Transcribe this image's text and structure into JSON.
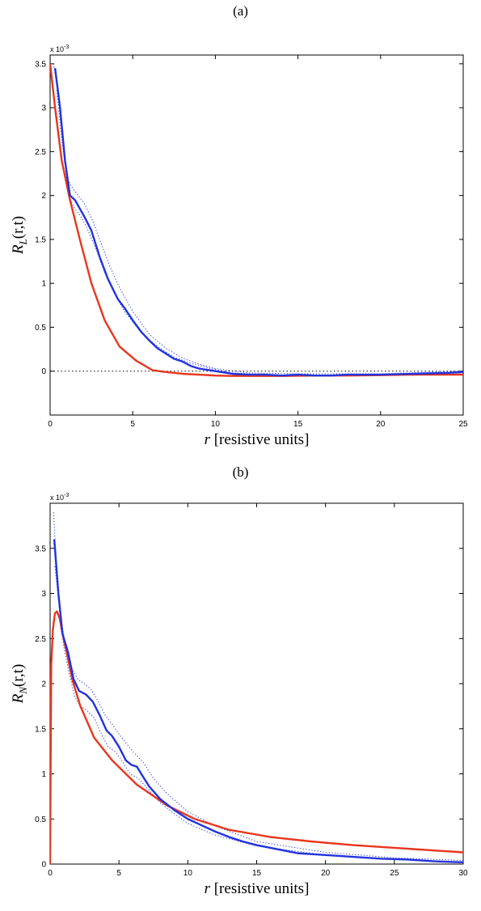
{
  "panels": {
    "a": {
      "label": "(a)"
    },
    "b": {
      "label": "(b)"
    }
  },
  "colors": {
    "red": "#e8361d",
    "blue": "#2233dd",
    "axis": "#000000"
  },
  "chart_data": [
    {
      "type": "line",
      "panel": "(a)",
      "xlabel": "r [resistive units]",
      "ylabel": "R_L(r,t)",
      "y_multiplier_label": "x 10^-3",
      "xlim": [
        0,
        25
      ],
      "ylim": [
        -0.5,
        3.6
      ],
      "xticks": [
        0,
        5,
        10,
        15,
        20,
        25
      ],
      "yticks": [
        0,
        0.5,
        1,
        1.5,
        2,
        2.5,
        3,
        3.5
      ],
      "reference_line": 0,
      "series": [
        {
          "color": "red",
          "x": [
            0,
            0.3,
            0.7,
            1.2,
            1.8,
            2.5,
            3.3,
            4.2,
            5.2,
            6.2,
            7,
            8,
            9,
            10,
            11,
            12,
            14,
            16,
            18,
            20,
            22,
            25
          ],
          "y": [
            3.5,
            3.0,
            2.4,
            1.95,
            1.5,
            1.0,
            0.58,
            0.28,
            0.12,
            0.01,
            -0.01,
            -0.03,
            -0.04,
            -0.05,
            -0.055,
            -0.055,
            -0.055,
            -0.05,
            -0.05,
            -0.045,
            -0.04,
            -0.04
          ]
        },
        {
          "color": "blue",
          "x": [
            0.3,
            0.6,
            0.9,
            1.2,
            1.5,
            1.8,
            2.1,
            2.5,
            3.0,
            3.5,
            4.1,
            4.5,
            5.0,
            5.5,
            6.0,
            6.5,
            7.0,
            7.5,
            8.0,
            8.5,
            9.0,
            10,
            11,
            12,
            13,
            14,
            15,
            16,
            17,
            18,
            20,
            22,
            24,
            25
          ],
          "y": [
            3.45,
            3.0,
            2.4,
            2.0,
            1.95,
            1.85,
            1.75,
            1.6,
            1.3,
            1.05,
            0.82,
            0.72,
            0.58,
            0.45,
            0.35,
            0.26,
            0.2,
            0.14,
            0.11,
            0.06,
            0.03,
            0.0,
            -0.03,
            -0.04,
            -0.04,
            -0.05,
            -0.04,
            -0.05,
            -0.05,
            -0.04,
            -0.04,
            -0.03,
            -0.02,
            -0.01
          ]
        },
        {
          "color": "blue",
          "style": "dotted",
          "x": [
            0.4,
            0.7,
            1.0,
            1.3,
            1.7,
            2.1,
            2.6,
            3.1,
            3.6,
            4.2,
            5.0,
            6.0,
            7.0,
            8.0,
            9.0,
            10,
            12,
            15,
            20,
            25
          ],
          "y": [
            3.2,
            2.65,
            2.2,
            2.1,
            2.0,
            1.9,
            1.7,
            1.45,
            1.2,
            0.95,
            0.68,
            0.42,
            0.26,
            0.15,
            0.08,
            0.03,
            -0.02,
            -0.03,
            -0.03,
            0.0
          ]
        },
        {
          "color": "blue",
          "style": "dotted",
          "x": [
            0.2,
            0.5,
            0.8,
            1.1,
            1.5,
            1.9,
            2.3,
            2.8,
            3.3,
            3.9,
            4.5,
            5.5,
            6.5,
            7.5,
            8.5,
            9.5,
            11,
            14,
            18,
            22,
            25
          ],
          "y": [
            3.5,
            3.15,
            2.55,
            2.0,
            1.85,
            1.75,
            1.6,
            1.38,
            1.12,
            0.88,
            0.68,
            0.44,
            0.28,
            0.16,
            0.09,
            0.04,
            -0.02,
            -0.05,
            -0.05,
            -0.04,
            -0.02
          ]
        }
      ]
    },
    {
      "type": "line",
      "panel": "(b)",
      "xlabel": "r [resistive units]",
      "ylabel": "R_N(r,t)",
      "y_multiplier_label": "x 10^-3",
      "xlim": [
        0,
        30
      ],
      "ylim": [
        0,
        4.0
      ],
      "xticks": [
        0,
        5,
        10,
        15,
        20,
        25,
        30
      ],
      "yticks": [
        0,
        0.5,
        1,
        1.5,
        2,
        2.5,
        3,
        3.5
      ],
      "series": [
        {
          "color": "red",
          "x": [
            0,
            0.08,
            0.2,
            0.35,
            0.5,
            0.7,
            0.9,
            1.2,
            1.6,
            2.2,
            3.2,
            4.5,
            6.3,
            8.5,
            10.5,
            13,
            16,
            19,
            22,
            25,
            28,
            30
          ],
          "y": [
            0,
            2.2,
            2.6,
            2.78,
            2.8,
            2.72,
            2.55,
            2.35,
            2.05,
            1.75,
            1.4,
            1.15,
            0.88,
            0.65,
            0.5,
            0.38,
            0.3,
            0.25,
            0.21,
            0.18,
            0.15,
            0.13
          ]
        },
        {
          "color": "blue",
          "x": [
            0.3,
            0.6,
            0.9,
            1.3,
            1.7,
            2.1,
            2.6,
            3.1,
            3.6,
            4.1,
            4.5,
            5.0,
            5.5,
            5.9,
            6.3,
            6.7,
            7.2,
            8.0,
            9.0,
            10,
            11,
            12,
            13,
            14,
            15,
            16,
            17,
            18,
            20,
            22,
            24,
            26,
            28,
            30
          ],
          "y": [
            3.6,
            3.0,
            2.55,
            2.35,
            2.05,
            1.92,
            1.88,
            1.8,
            1.65,
            1.48,
            1.42,
            1.3,
            1.15,
            1.1,
            1.08,
            0.98,
            0.86,
            0.72,
            0.6,
            0.5,
            0.43,
            0.36,
            0.3,
            0.25,
            0.21,
            0.18,
            0.15,
            0.12,
            0.1,
            0.08,
            0.06,
            0.05,
            0.03,
            0.02
          ]
        },
        {
          "color": "blue",
          "style": "dotted",
          "x": [
            0.25,
            0.5,
            0.8,
            1.1,
            1.5,
            2.0,
            2.5,
            3.0,
            3.5,
            4.0,
            4.5,
            5.2,
            6.0,
            6.8,
            7.5,
            8.5,
            10,
            12,
            15,
            20,
            25,
            30
          ],
          "y": [
            3.9,
            3.2,
            2.7,
            2.45,
            2.2,
            2.05,
            2.0,
            1.93,
            1.8,
            1.65,
            1.55,
            1.4,
            1.25,
            1.12,
            0.95,
            0.78,
            0.58,
            0.42,
            0.25,
            0.13,
            0.07,
            0.04
          ]
        },
        {
          "color": "blue",
          "style": "dotted",
          "x": [
            0.35,
            0.7,
            1.0,
            1.4,
            1.8,
            2.2,
            2.7,
            3.2,
            3.7,
            4.2,
            4.7,
            5.2,
            5.8,
            6.4,
            7.0,
            8.0,
            9.0,
            10,
            12,
            15,
            20,
            25,
            30
          ],
          "y": [
            3.3,
            2.8,
            2.4,
            2.1,
            1.85,
            1.75,
            1.7,
            1.62,
            1.45,
            1.3,
            1.25,
            1.15,
            1.0,
            0.95,
            0.85,
            0.68,
            0.56,
            0.45,
            0.32,
            0.2,
            0.1,
            0.05,
            0.02
          ]
        }
      ]
    }
  ]
}
